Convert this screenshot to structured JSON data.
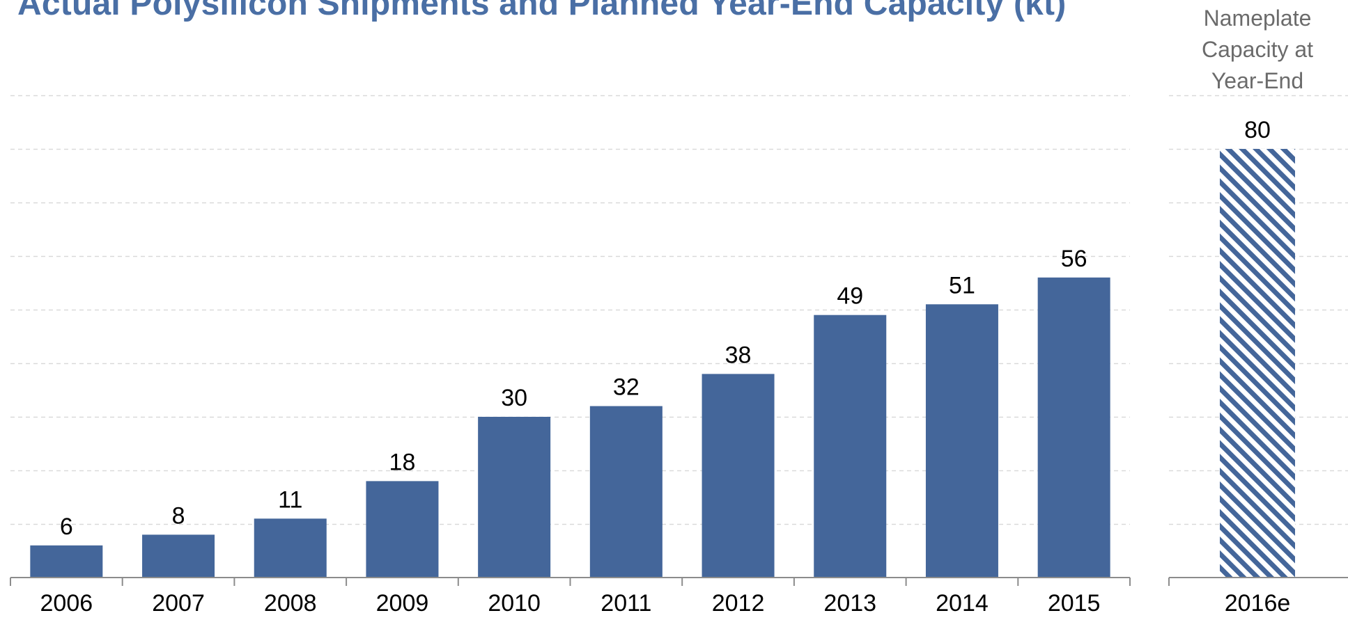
{
  "chart_data": {
    "type": "bar",
    "title": "Actual Polysilicon Shipments and Planned Year-End Capacity (kt)",
    "categories": [
      "2006",
      "2007",
      "2008",
      "2009",
      "2010",
      "2011",
      "2012",
      "2013",
      "2014",
      "2015"
    ],
    "values": [
      6,
      8,
      11,
      18,
      30,
      32,
      38,
      49,
      51,
      56
    ],
    "capacity": {
      "category": "2016e",
      "value": 80,
      "label_lines": [
        "Nameplate",
        "Capacity at",
        "Year-End"
      ]
    },
    "ylim": [
      0,
      90
    ],
    "grid": true,
    "colors": {
      "bar": "#44669A",
      "hatch": "#44669A",
      "grid": "#d9d9d9",
      "axis": "#8c8c8c",
      "title": "#4A6FA5",
      "capacity_label": "#6b6b6b"
    }
  }
}
